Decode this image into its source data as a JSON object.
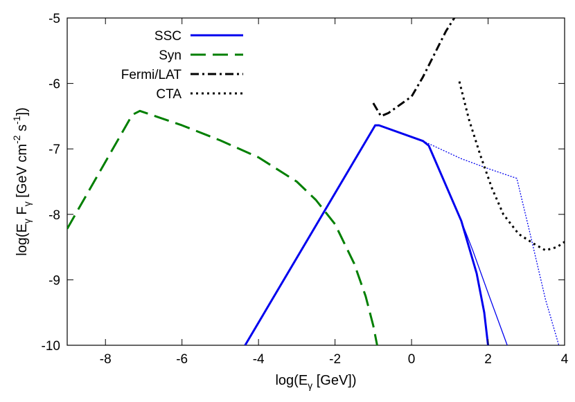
{
  "chart_data": {
    "type": "line",
    "title": "",
    "xlabel": "log(E_γ [GeV])",
    "ylabel": "log(E_γ F_γ [GeV cm^-2 s^-1])",
    "xlim": [
      -9,
      4
    ],
    "ylim": [
      -10,
      -5
    ],
    "x_ticks": [
      "-8",
      "-6",
      "-4",
      "-2",
      "0",
      "2",
      "4"
    ],
    "y_ticks": [
      "-5",
      "-6",
      "-7",
      "-8",
      "-9",
      "-10"
    ],
    "x_tick_values": [
      -8,
      -6,
      -4,
      -2,
      0,
      2,
      4
    ],
    "y_tick_values": [
      -5,
      -6,
      -7,
      -8,
      -9,
      -10
    ],
    "grid": false,
    "legend_position": "top-left",
    "series": [
      {
        "name": "SSC",
        "color": "#0000ee",
        "style": "solid",
        "width": "thick",
        "x": [
          -4.35,
          -0.95,
          -0.85,
          0.3,
          0.45,
          1.3,
          1.7,
          1.9,
          2.0
        ],
        "y": [
          -10,
          -6.64,
          -6.64,
          -6.88,
          -6.95,
          -8.1,
          -8.9,
          -9.5,
          -10
        ]
      },
      {
        "name": "",
        "color": "#0000ee",
        "style": "solid",
        "width": "thin",
        "x": [
          0.45,
          1.3,
          1.6,
          2.0,
          2.5
        ],
        "y": [
          -6.95,
          -8.1,
          -8.55,
          -9.2,
          -10
        ]
      },
      {
        "name": "",
        "color": "#0000ee",
        "style": "dotted-thin",
        "width": "thin",
        "x": [
          0.3,
          1.3,
          2.0,
          2.75,
          3.1,
          3.5,
          3.85
        ],
        "y": [
          -6.88,
          -7.15,
          -7.3,
          -7.45,
          -8.3,
          -9.3,
          -10
        ]
      },
      {
        "name": "Syn",
        "color": "#007f00",
        "style": "dashed",
        "width": "thick",
        "x": [
          -9.0,
          -7.3,
          -7.1,
          -6.0,
          -5.0,
          -4.0,
          -3.0,
          -2.5,
          -2.0,
          -1.5,
          -1.2,
          -1.0,
          -0.9
        ],
        "y": [
          -8.22,
          -6.48,
          -6.42,
          -6.64,
          -6.87,
          -7.13,
          -7.5,
          -7.78,
          -8.15,
          -8.75,
          -9.25,
          -9.7,
          -10
        ]
      },
      {
        "name": "Fermi/LAT",
        "color": "#000000",
        "style": "dash-dot",
        "width": "thick",
        "x": [
          -1.0,
          -0.8,
          -0.6,
          0.0,
          0.3,
          0.6,
          0.9,
          1.15
        ],
        "y": [
          -6.3,
          -6.5,
          -6.45,
          -6.2,
          -5.9,
          -5.55,
          -5.2,
          -4.97
        ]
      },
      {
        "name": "CTA",
        "color": "#000000",
        "style": "dotted",
        "width": "thick",
        "x": [
          1.25,
          1.5,
          1.8,
          2.1,
          2.4,
          2.8,
          3.2,
          3.5,
          3.8,
          4.0
        ],
        "y": [
          -5.97,
          -6.55,
          -7.1,
          -7.6,
          -8.0,
          -8.3,
          -8.45,
          -8.55,
          -8.5,
          -8.42
        ]
      }
    ]
  }
}
